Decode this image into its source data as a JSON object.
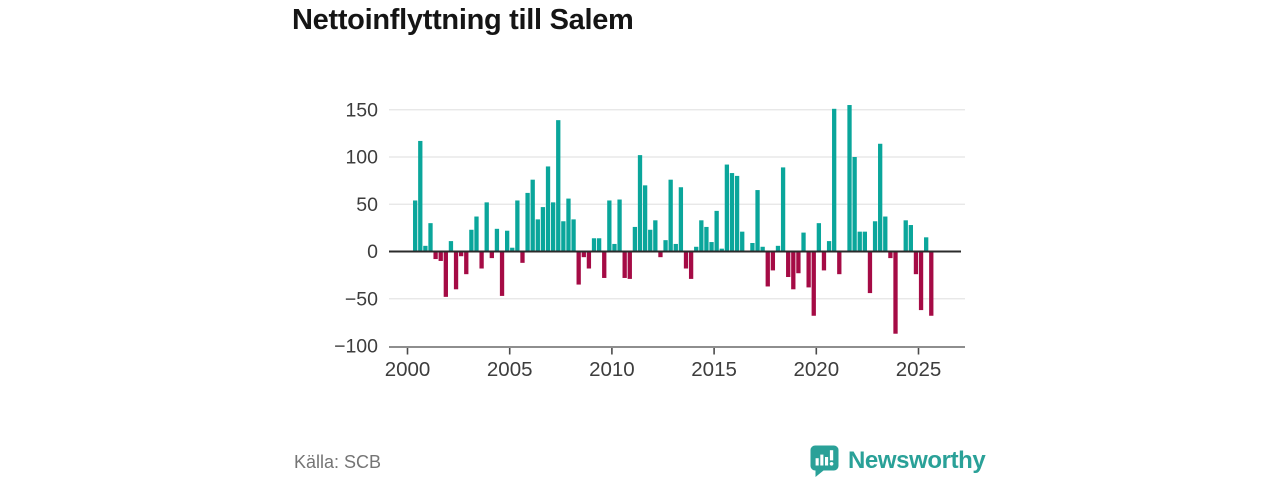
{
  "page": {
    "title": "Nettoinflyttning till Salem"
  },
  "footer": {
    "source": "Källa: SCB",
    "brand": "Newsworthy"
  },
  "colors": {
    "positive": "#0aa69b",
    "negative": "#a50b45",
    "grid": "#e4e4e4",
    "axis": "#4a4a4a",
    "zero_line": "#2b2b2b",
    "tick_text": "#3d3d3d",
    "title_text": "#151515",
    "muted_text": "#757575",
    "brand": "#2aa198"
  },
  "chart_data": {
    "type": "bar",
    "title": "Nettoinflyttning till Salem",
    "source": "Källa: SCB",
    "x_unit": "quarter",
    "xlabel": "",
    "ylabel": "",
    "ylim": [
      -100,
      150
    ],
    "grid": true,
    "legend": false,
    "bar_color_positive": "#0aa69b",
    "bar_color_negative": "#a50b45",
    "yticks": [
      150,
      100,
      50,
      0,
      -50,
      -100
    ],
    "ytick_labels": [
      "150",
      "100",
      "50",
      "0",
      "−50",
      "−100"
    ],
    "xticks": [
      2000,
      2005,
      2010,
      2015,
      2020,
      2025
    ],
    "xtick_labels": [
      "2000",
      "2005",
      "2010",
      "2015",
      "2020",
      "2025"
    ],
    "categories": [
      "2000Q2",
      "2000Q3",
      "2000Q4",
      "2001Q1",
      "2001Q2",
      "2001Q3",
      "2001Q4",
      "2002Q1",
      "2002Q2",
      "2002Q3",
      "2002Q4",
      "2003Q1",
      "2003Q2",
      "2003Q3",
      "2003Q4",
      "2004Q1",
      "2004Q2",
      "2004Q3",
      "2004Q4",
      "2005Q1",
      "2005Q2",
      "2005Q3",
      "2005Q4",
      "2006Q1",
      "2006Q2",
      "2006Q3",
      "2006Q4",
      "2007Q1",
      "2007Q2",
      "2007Q3",
      "2007Q4",
      "2008Q1",
      "2008Q2",
      "2008Q3",
      "2008Q4",
      "2009Q1",
      "2009Q2",
      "2009Q3",
      "2009Q4",
      "2010Q1",
      "2010Q2",
      "2010Q3",
      "2010Q4",
      "2011Q1",
      "2011Q2",
      "2011Q3",
      "2011Q4",
      "2012Q1",
      "2012Q2",
      "2012Q3",
      "2012Q4",
      "2013Q1",
      "2013Q2",
      "2013Q3",
      "2013Q4",
      "2014Q1",
      "2014Q2",
      "2014Q3",
      "2014Q4",
      "2015Q1",
      "2015Q2",
      "2015Q3",
      "2015Q4",
      "2016Q1",
      "2016Q2",
      "2016Q3",
      "2016Q4",
      "2017Q1",
      "2017Q2",
      "2017Q3",
      "2017Q4",
      "2018Q1",
      "2018Q2",
      "2018Q3",
      "2018Q4",
      "2019Q1",
      "2019Q2",
      "2019Q3",
      "2019Q4",
      "2020Q1",
      "2020Q2",
      "2020Q3",
      "2020Q4",
      "2021Q1",
      "2021Q2",
      "2021Q3",
      "2021Q4",
      "2022Q1",
      "2022Q2",
      "2022Q3",
      "2022Q4",
      "2023Q1",
      "2023Q2",
      "2023Q3",
      "2023Q4",
      "2024Q1",
      "2024Q2",
      "2024Q3",
      "2024Q4",
      "2025Q1",
      "2025Q2",
      "2025Q3"
    ],
    "values": [
      54,
      117,
      6,
      30,
      -8,
      -10,
      -48,
      11,
      -40,
      -5,
      -24,
      23,
      37,
      -18,
      52,
      -7,
      24,
      -47,
      22,
      4,
      54,
      -12,
      62,
      76,
      34,
      47,
      90,
      52,
      139,
      32,
      56,
      34,
      -35,
      -6,
      -18,
      14,
      14,
      -28,
      54,
      8,
      55,
      -28,
      -29,
      26,
      102,
      70,
      23,
      33,
      -6,
      12,
      76,
      8,
      68,
      -18,
      -29,
      5,
      33,
      26,
      10,
      43,
      3,
      92,
      83,
      80,
      21,
      0,
      9,
      65,
      5,
      -37,
      -20,
      6,
      89,
      -27,
      -40,
      -23,
      20,
      -38,
      -68,
      30,
      -20,
      11,
      151,
      -24,
      0,
      155,
      100,
      21,
      21,
      -44,
      32,
      114,
      37,
      -7,
      -87,
      0,
      33,
      28,
      -24,
      -62,
      15,
      -68
    ]
  }
}
